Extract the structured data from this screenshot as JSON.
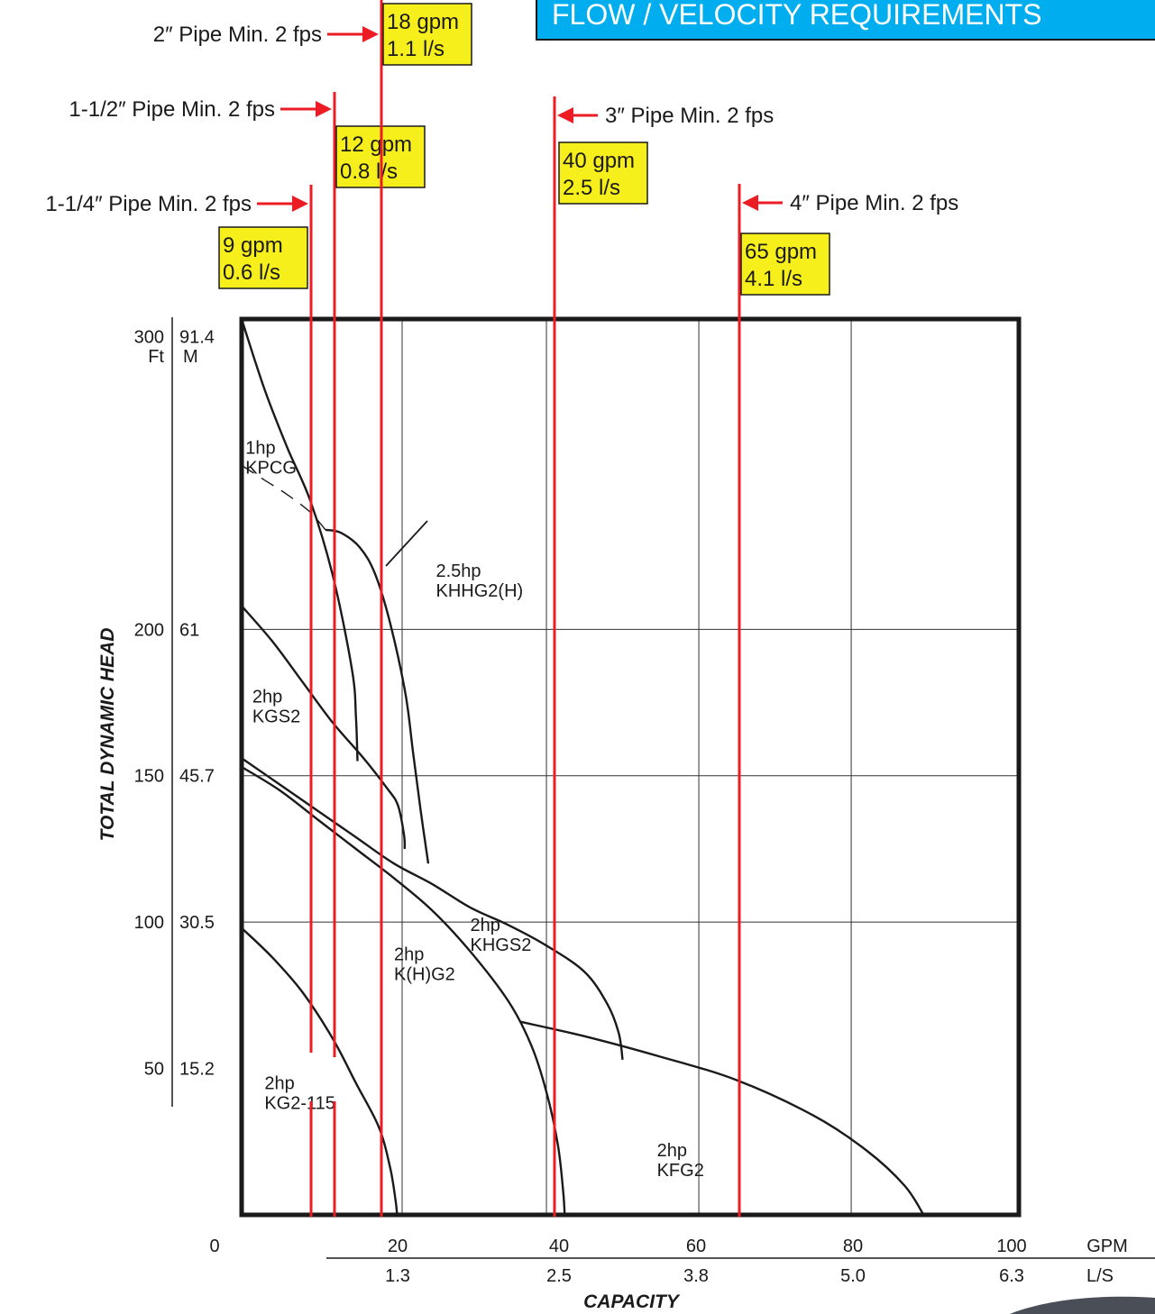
{
  "header_banner": {
    "text": "FLOW / VELOCITY REQUIREMENTS",
    "color": "#00aeef"
  },
  "chart_data": {
    "type": "line",
    "title": "FLOW / VELOCITY REQUIREMENTS",
    "xlabel": "CAPACITY",
    "ylabel": "TOTAL DYNAMIC HEAD",
    "x_units": [
      "GPM",
      "L/S"
    ],
    "y_units": [
      "Ft",
      "M"
    ],
    "xlim": [
      0,
      102
    ],
    "ylim": [
      0,
      306
    ],
    "grid": true,
    "x_ticks": [
      {
        "gpm": 0,
        "gpm_label": "0",
        "ls_label": ""
      },
      {
        "gpm": 20,
        "gpm_label": "20",
        "ls_label": "1.3"
      },
      {
        "gpm": 40,
        "gpm_label": "40",
        "ls_label": "2.5"
      },
      {
        "gpm": 60,
        "gpm_label": "60",
        "ls_label": "3.8"
      },
      {
        "gpm": 80,
        "gpm_label": "80",
        "ls_label": "5.0"
      },
      {
        "gpm": 100,
        "gpm_label": "100",
        "ls_label": "6.3"
      }
    ],
    "y_ticks": [
      {
        "ft": 300,
        "ft_label": "300",
        "m_label": "91.4"
      },
      {
        "ft": 200,
        "ft_label": "200",
        "m_label": "61"
      },
      {
        "ft": 150,
        "ft_label": "150",
        "m_label": "45.7"
      },
      {
        "ft": 100,
        "ft_label": "100",
        "m_label": "30.5"
      },
      {
        "ft": 50,
        "ft_label": "50",
        "m_label": "15.2"
      }
    ],
    "series": [
      {
        "name": "1hp KPCG",
        "label_lines": [
          "1hp",
          "KPCG"
        ],
        "label_at": [
          0.5,
          260
        ],
        "points": [
          [
            0,
            306
          ],
          [
            3,
            282
          ],
          [
            6,
            262
          ],
          [
            9,
            244
          ],
          [
            12,
            218
          ],
          [
            14.5,
            186
          ],
          [
            15,
            170
          ],
          [
            15.2,
            155
          ]
        ]
      },
      {
        "name": "1hp KPCG (dashed)",
        "dashed": true,
        "points": [
          [
            0,
            256
          ],
          [
            3,
            251
          ],
          [
            6,
            246
          ],
          [
            9,
            240
          ],
          [
            11,
            234
          ]
        ]
      },
      {
        "name": "2.5hp KHHG2(H)",
        "label_lines": [
          "2.5hp",
          "KHHG2(H)"
        ],
        "label_at": [
          25.5,
          218
        ],
        "points": [
          [
            11,
            234
          ],
          [
            13,
            233
          ],
          [
            15.5,
            228
          ],
          [
            17.5,
            219
          ],
          [
            19.5,
            202
          ],
          [
            21.5,
            178
          ],
          [
            22.5,
            158
          ],
          [
            23.5,
            138
          ],
          [
            24.5,
            120
          ]
        ]
      },
      {
        "name": "2hp KGS2",
        "label_lines": [
          "2hp",
          "KGS2"
        ],
        "label_at": [
          1.4,
          175
        ],
        "points": [
          [
            0,
            208
          ],
          [
            4,
            196
          ],
          [
            8,
            182
          ],
          [
            12,
            168
          ],
          [
            16,
            156
          ],
          [
            19,
            146
          ],
          [
            20.5,
            140
          ],
          [
            21.3,
            130
          ],
          [
            21.4,
            125
          ]
        ]
      },
      {
        "name": "2hp KHGS2",
        "label_lines": [
          "2hp",
          "KHGS2"
        ],
        "label_at": [
          30,
          97
        ],
        "points": [
          [
            0,
            156
          ],
          [
            5,
            147
          ],
          [
            10,
            138
          ],
          [
            15,
            129
          ],
          [
            20,
            120
          ],
          [
            25,
            113
          ],
          [
            30,
            105
          ],
          [
            35,
            99
          ],
          [
            40,
            92
          ],
          [
            45,
            83
          ],
          [
            48,
            72
          ],
          [
            49.5,
            62
          ],
          [
            50,
            53
          ]
        ]
      },
      {
        "name": "2hp K(H)G2",
        "label_lines": [
          "2hp",
          "K(H)G2"
        ],
        "label_at": [
          20,
          87
        ],
        "points": [
          [
            0,
            153
          ],
          [
            5,
            145
          ],
          [
            10,
            135
          ],
          [
            15,
            125
          ],
          [
            20,
            115
          ],
          [
            25,
            104
          ],
          [
            30,
            90
          ],
          [
            35,
            73
          ],
          [
            38,
            58
          ],
          [
            40,
            42
          ],
          [
            41.5,
            24
          ],
          [
            42.2,
            8
          ],
          [
            42.4,
            0
          ]
        ]
      },
      {
        "name": "2hp KG2-115",
        "label_lines": [
          "2hp",
          "KG2-115"
        ],
        "label_at": [
          3,
          43
        ],
        "points": [
          [
            0,
            98
          ],
          [
            4,
            88
          ],
          [
            8,
            76
          ],
          [
            12,
            60
          ],
          [
            15,
            45
          ],
          [
            18,
            30
          ],
          [
            19.5,
            16
          ],
          [
            20.2,
            5
          ],
          [
            20.4,
            0
          ]
        ]
      },
      {
        "name": "2hp KFG2",
        "label_lines": [
          "2hp",
          "KFG2"
        ],
        "label_at": [
          54.5,
          20
        ],
        "points": [
          [
            36.5,
            66
          ],
          [
            45,
            61
          ],
          [
            55,
            54
          ],
          [
            65,
            46
          ],
          [
            75,
            34
          ],
          [
            82,
            22
          ],
          [
            87,
            10
          ],
          [
            89.5,
            0
          ]
        ]
      }
    ],
    "pipe_lines": [
      {
        "gpm": 9,
        "label": "1-1/4″ Pipe Min. 2 fps",
        "callout": [
          "9 gpm",
          "0.6 l/s"
        ],
        "side": "left"
      },
      {
        "gpm": 12,
        "label": "1-1/2″ Pipe Min. 2 fps",
        "callout": [
          "12 gpm",
          "0.8 l/s"
        ],
        "side": "left"
      },
      {
        "gpm": 18,
        "label": "2″ Pipe Min. 2 fps",
        "callout": [
          "18 gpm",
          "1.1 l/s"
        ],
        "side": "left"
      },
      {
        "gpm": 40,
        "label": "3″ Pipe Min. 2 fps",
        "callout": [
          "40 gpm",
          "2.5 l/s"
        ],
        "side": "right"
      },
      {
        "gpm": 65,
        "label": "4″ Pipe Min. 2 fps",
        "callout": [
          "65 gpm",
          "4.1 l/s"
        ],
        "side": "right"
      }
    ],
    "colors": {
      "pipe": "#ec1c24",
      "callout": "#f7ef1b",
      "curve": "#1a1a1a"
    }
  }
}
